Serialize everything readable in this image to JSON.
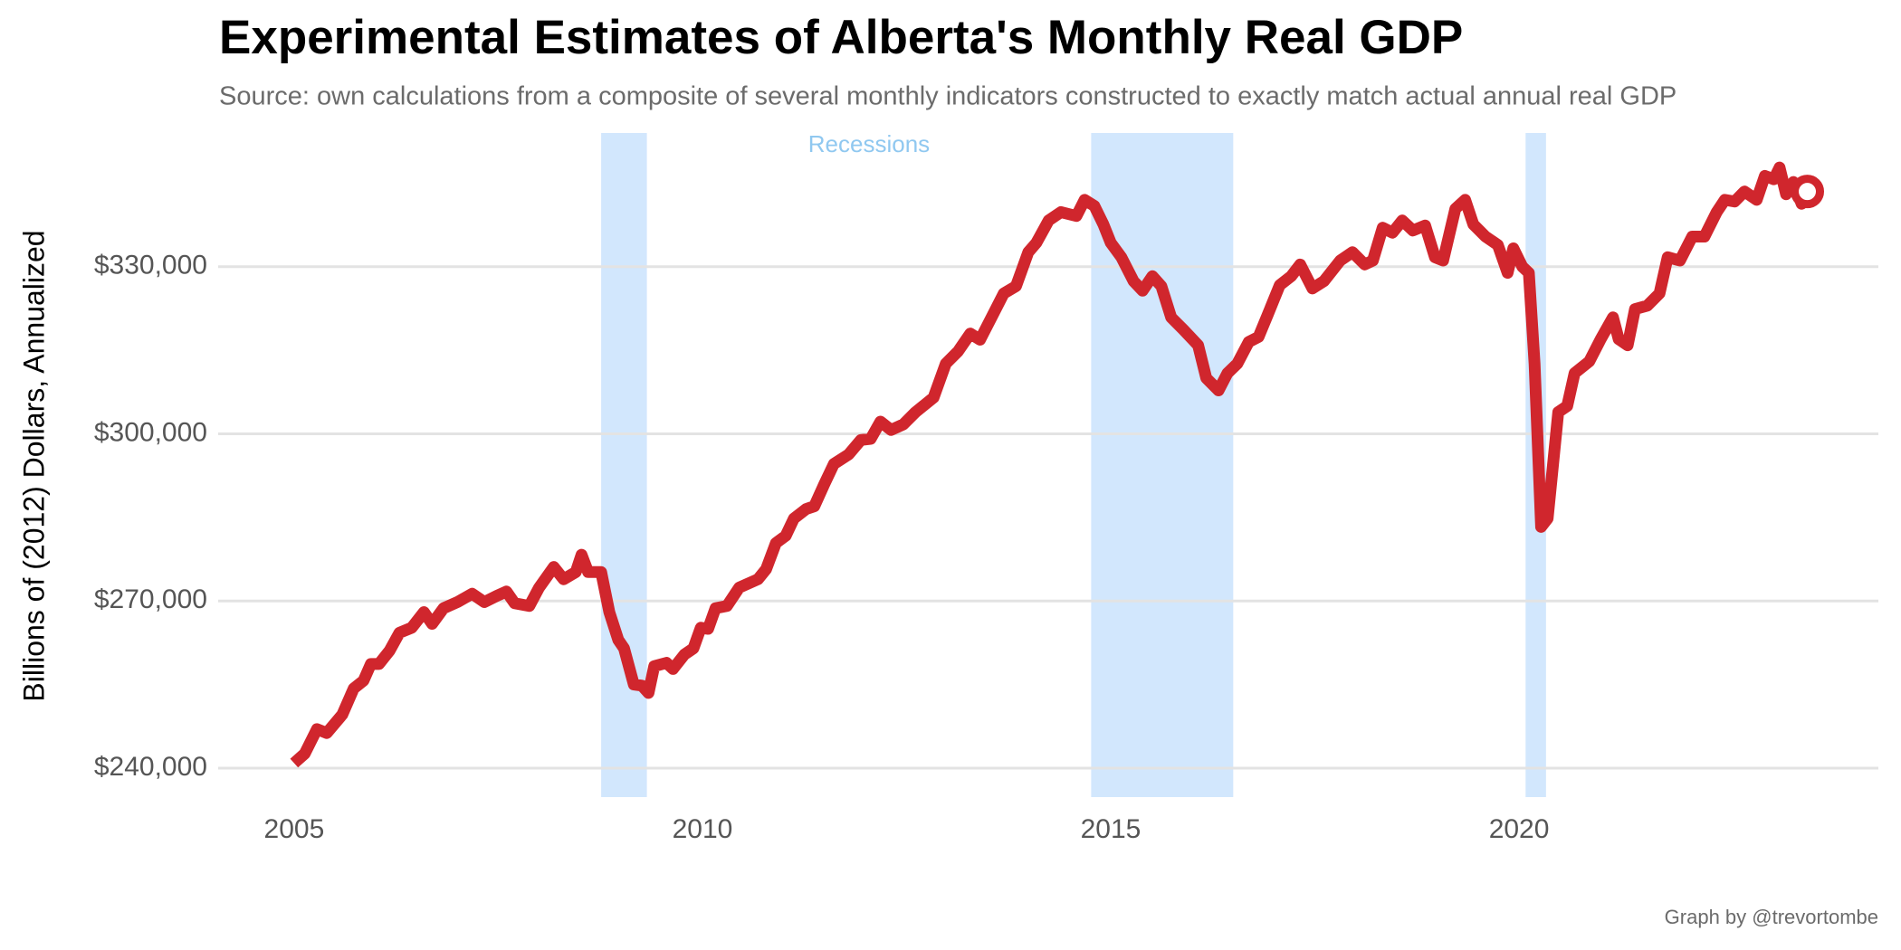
{
  "chart_data": {
    "type": "line",
    "title": "Experimental Estimates of Alberta's Monthly Real GDP",
    "subtitle": "Source: own calculations from a composite of several monthly indicators constructed to exactly match actual annual real GDP",
    "y_label": "Billions of (2012) Dollars, Annualized",
    "caption": "Graph by @trevortombe",
    "recession_label": "Recessions",
    "recession_color": "#d2e7fd",
    "recessions": [
      [
        2008.76,
        2009.32
      ],
      [
        2014.76,
        2016.5
      ],
      [
        2020.08,
        2020.33
      ]
    ],
    "xlim": [
      2004.07,
      2024.4
    ],
    "xticks": [
      2005,
      2010,
      2015,
      2020
    ],
    "ylim": [
      234800,
      354000
    ],
    "yticks": [
      {
        "value": 240000,
        "label": "$240,000"
      },
      {
        "value": 270000,
        "label": "$270,000"
      },
      {
        "value": 300000,
        "label": "$300,000"
      },
      {
        "value": 330000,
        "label": "$330,000"
      }
    ],
    "grid": true,
    "series": [
      {
        "color": "#d0262d",
        "x": [
          2005.0,
          2005.13,
          2005.28,
          2005.4,
          2005.59,
          2005.73,
          2005.85,
          2005.94,
          2006.04,
          2006.17,
          2006.29,
          2006.44,
          2006.59,
          2006.69,
          2006.83,
          2007.0,
          2007.18,
          2007.33,
          2007.48,
          2007.6,
          2007.7,
          2007.88,
          2008.0,
          2008.18,
          2008.3,
          2008.45,
          2008.52,
          2008.6,
          2008.76,
          2008.86,
          2008.97,
          2009.04,
          2009.16,
          2009.26,
          2009.34,
          2009.41,
          2009.56,
          2009.64,
          2009.78,
          2009.89,
          2009.98,
          2010.07,
          2010.16,
          2010.3,
          2010.45,
          2010.68,
          2010.78,
          2010.9,
          2011.02,
          2011.12,
          2011.27,
          2011.37,
          2011.49,
          2011.61,
          2011.79,
          2011.94,
          2012.06,
          2012.18,
          2012.31,
          2012.46,
          2012.61,
          2012.83,
          2012.98,
          2013.13,
          2013.28,
          2013.4,
          2013.54,
          2013.69,
          2013.84,
          2013.99,
          2014.09,
          2014.24,
          2014.39,
          2014.58,
          2014.68,
          2014.8,
          2014.91,
          2015.0,
          2015.13,
          2015.28,
          2015.39,
          2015.51,
          2015.62,
          2015.74,
          2015.89,
          2016.07,
          2016.17,
          2016.32,
          2016.43,
          2016.55,
          2016.69,
          2016.81,
          2016.92,
          2017.07,
          2017.21,
          2017.32,
          2017.47,
          2017.61,
          2017.81,
          2017.96,
          2018.11,
          2018.21,
          2018.33,
          2018.45,
          2018.57,
          2018.7,
          2018.85,
          2018.97,
          2019.07,
          2019.22,
          2019.34,
          2019.44,
          2019.59,
          2019.74,
          2019.86,
          2019.93,
          2020.04,
          2020.12,
          2020.19,
          2020.27,
          2020.35,
          2020.48,
          2020.59,
          2020.68,
          2020.86,
          2021.0,
          2021.15,
          2021.22,
          2021.33,
          2021.42,
          2021.57,
          2021.72,
          2021.82,
          2021.97,
          2022.12,
          2022.27,
          2022.42,
          2022.52,
          2022.64,
          2022.76,
          2022.91,
          2023.01,
          2023.12,
          2023.19,
          2023.27,
          2023.36,
          2023.46,
          2023.53
        ],
        "values": [
          240900,
          242600,
          247000,
          246300,
          249600,
          254300,
          255700,
          258700,
          258700,
          261100,
          264300,
          265200,
          268000,
          265900,
          268700,
          269800,
          271300,
          269800,
          270900,
          271700,
          269600,
          269100,
          272400,
          276100,
          273900,
          275200,
          278300,
          275200,
          275200,
          268000,
          263000,
          261500,
          255000,
          254800,
          253500,
          258300,
          258900,
          257800,
          260400,
          261500,
          265200,
          265000,
          268700,
          269100,
          272400,
          273900,
          275700,
          280400,
          281700,
          284800,
          286500,
          287000,
          290900,
          294600,
          296300,
          298900,
          299100,
          302200,
          300700,
          301700,
          303900,
          306500,
          312600,
          314800,
          318000,
          316900,
          320900,
          325200,
          326500,
          332600,
          334300,
          338300,
          339800,
          339100,
          342000,
          340900,
          337600,
          334300,
          331700,
          327400,
          325700,
          328300,
          326500,
          320900,
          318700,
          315900,
          310000,
          307800,
          310900,
          312600,
          316500,
          317400,
          321300,
          326700,
          328300,
          330400,
          326100,
          327400,
          331100,
          332600,
          330400,
          331100,
          337000,
          336100,
          338300,
          336500,
          337400,
          331700,
          331100,
          340400,
          342000,
          337600,
          335400,
          333900,
          328900,
          333300,
          330000,
          328900,
          312600,
          283300,
          284800,
          303900,
          305000,
          310900,
          313000,
          317000,
          320900,
          317000,
          315900,
          322400,
          323000,
          325200,
          331700,
          331100,
          335400,
          335400,
          339800,
          342000,
          341700,
          343500,
          342000,
          346300,
          345700,
          347800,
          343000,
          345200,
          341300,
          343500
        ]
      }
    ]
  }
}
